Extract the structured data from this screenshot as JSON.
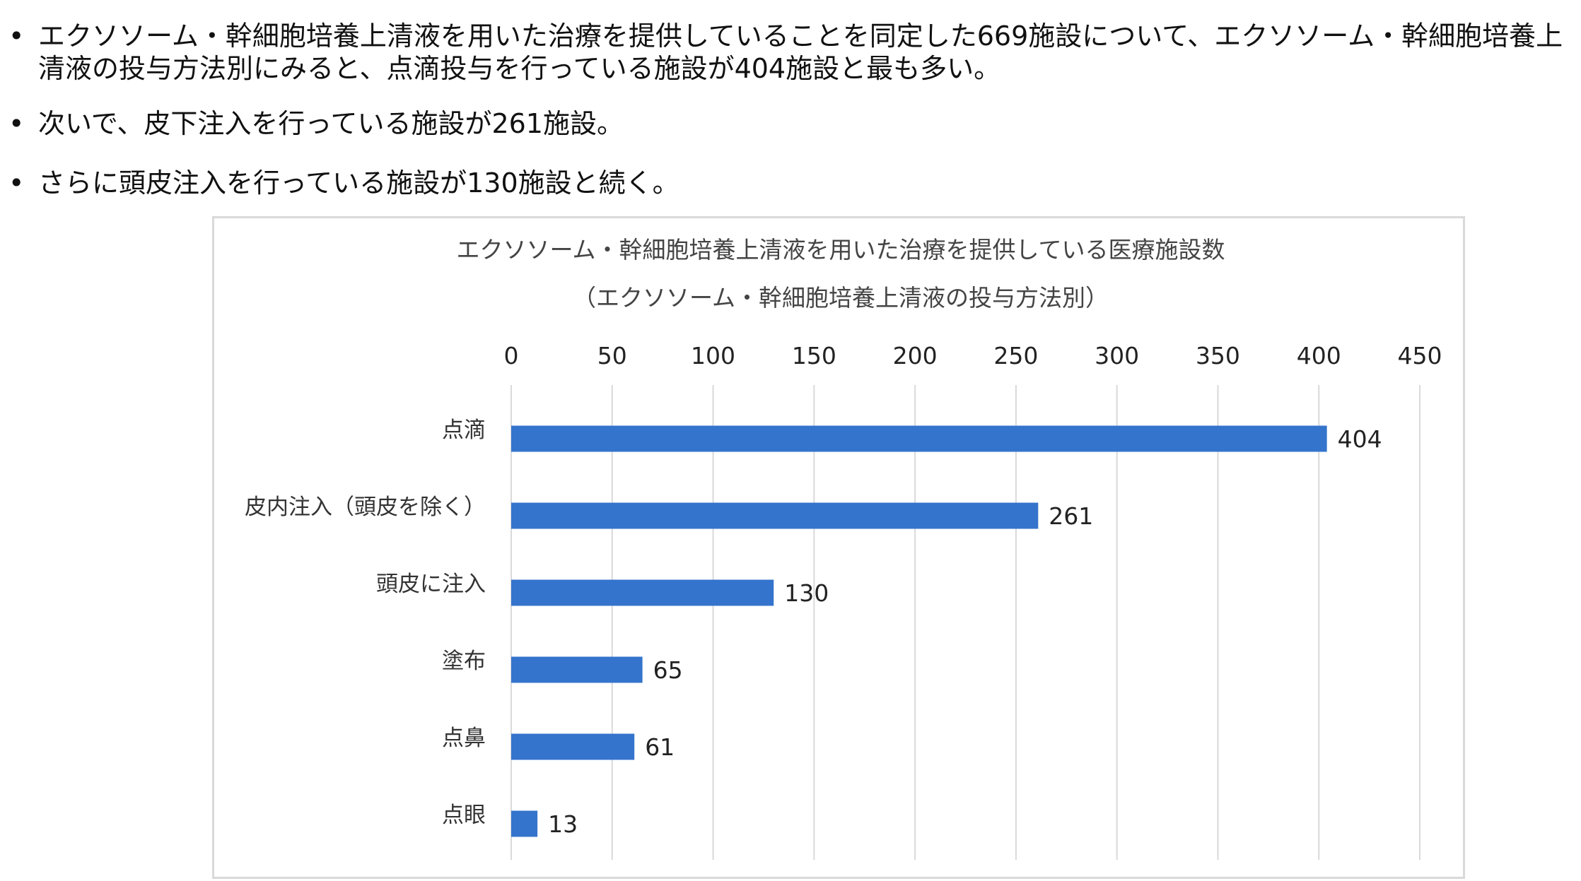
{
  "bullets": [
    {
      "symbol": "•",
      "text": "エクソソーム・幹細胞培養上清液を用いた治療を提供していることを同定した669施設について、エクソソーム・幹細胞培養上清液の投与方法別にみると、点滴投与を行っている施設が404施設と最も多い。"
    },
    {
      "symbol": "•",
      "text": "次いで、皮下注入を行っている施設が261施設。"
    },
    {
      "symbol": "•",
      "text": "さらに頭皮注入を行っている施設が130施設と続く。"
    }
  ],
  "chart_data": {
    "type": "bar",
    "orientation": "horizontal",
    "title": "エクソソーム・幹細胞培養上清液を用いた治療を提供している医療施設数",
    "subtitle": "（エクソソーム・幹細胞培養上清液の投与方法別）",
    "categories": [
      "点滴",
      "皮内注入（頭皮を除く）",
      "頭皮に注入",
      "塗布",
      "点鼻",
      "点眼"
    ],
    "values": [
      404,
      261,
      130,
      65,
      61,
      13
    ],
    "xlim": [
      0,
      450
    ],
    "xticks": [
      0,
      50,
      100,
      150,
      200,
      250,
      300,
      350,
      400,
      450
    ],
    "xaxis_position": "top",
    "grid": true,
    "legend": "none",
    "bar_color": "#3574CC",
    "grid_color": "#d9d9d9"
  }
}
